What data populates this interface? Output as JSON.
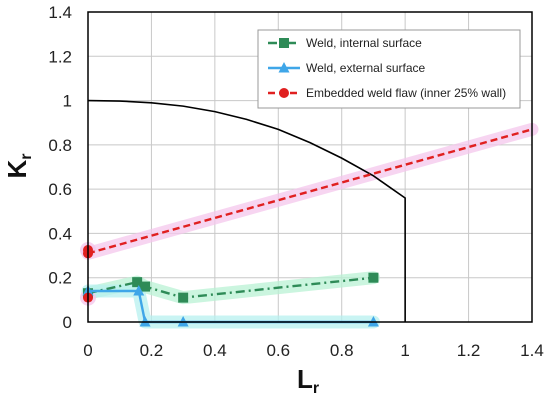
{
  "chart_data": {
    "type": "line",
    "xlabel": {
      "main": "L",
      "sub": "r"
    },
    "ylabel": {
      "main": "K",
      "sub": "r"
    },
    "xlim": [
      0,
      1.4
    ],
    "ylim": [
      0,
      1.4
    ],
    "xticks": [
      "0",
      "0.2",
      "0.4",
      "0.6",
      "0.8",
      "1",
      "1.2",
      "1.4"
    ],
    "yticks": [
      "0",
      "0.2",
      "0.4",
      "0.6",
      "0.8",
      "1",
      "1.2",
      "1.4"
    ],
    "grid": true,
    "legend_position": "top-right",
    "fad_curve": {
      "color": "#000000",
      "x": [
        0,
        0.1,
        0.2,
        0.3,
        0.4,
        0.5,
        0.6,
        0.7,
        0.8,
        0.9,
        0.95,
        1.0,
        1.0
      ],
      "y": [
        1.0,
        0.998,
        0.99,
        0.975,
        0.95,
        0.915,
        0.87,
        0.81,
        0.74,
        0.66,
        0.61,
        0.56,
        0.0
      ]
    },
    "series": [
      {
        "name": "Weld, internal surface",
        "color": "#2e8b57",
        "glow": "#b9f2d4",
        "marker": "square",
        "dash": "dashdot",
        "x": [
          0,
          0.155,
          0.18,
          0.3,
          0.9
        ],
        "y": [
          0.13,
          0.18,
          0.16,
          0.11,
          0.2
        ]
      },
      {
        "name": "Weld, external surface",
        "color": "#3fa6e8",
        "glow": "#b7f0ef",
        "marker": "triangle",
        "dash": "solid",
        "x": [
          0,
          0.16,
          0.18,
          0.3,
          0.9
        ],
        "y": [
          0.14,
          0.14,
          0.0,
          0.0,
          0.0
        ]
      },
      {
        "name": "Embedded weld flaw (inner 25% wall)",
        "color": "#e02020",
        "glow": "#f4c7ec",
        "marker": "circle",
        "dash": "dashed",
        "x": [
          0,
          1.4
        ],
        "y": [
          0.31,
          0.87
        ]
      }
    ],
    "extra_points": [
      {
        "series": 2,
        "x": 0,
        "y": 0.325
      },
      {
        "series": 2,
        "x": 0,
        "y": 0.11
      }
    ]
  }
}
